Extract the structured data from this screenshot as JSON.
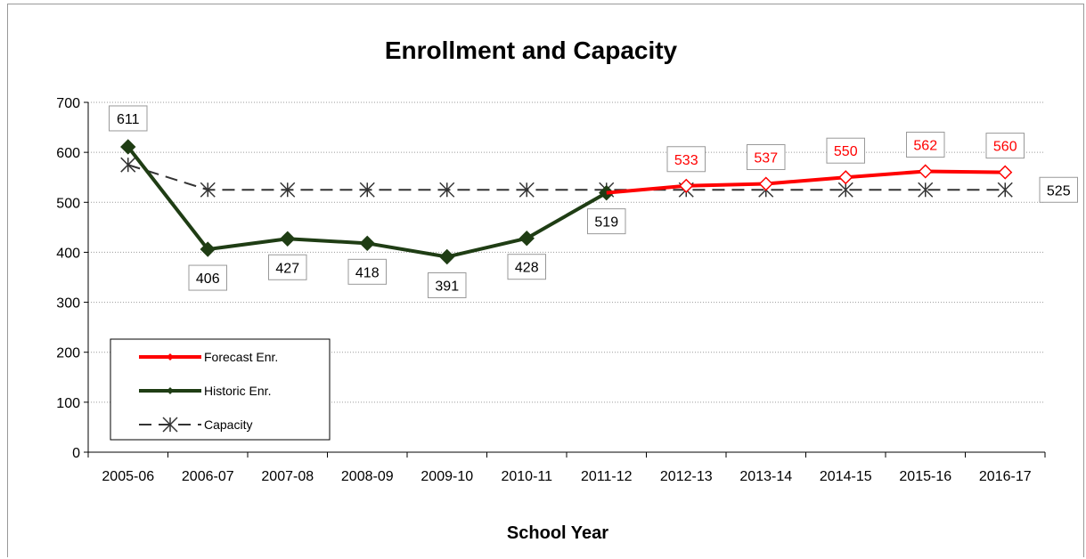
{
  "chart_data": {
    "type": "line",
    "title": "Enrollment and Capacity",
    "xlabel": "School Year",
    "ylabel": "",
    "ylim": [
      0,
      700
    ],
    "yticks": [
      "0",
      "100",
      "200",
      "300",
      "400",
      "500",
      "600",
      "700"
    ],
    "grid": true,
    "legend_position": "bottom-left",
    "categories": [
      "2005-06",
      "2006-07",
      "2007-08",
      "2008-09",
      "2009-10",
      "2010-11",
      "2011-12",
      "2012-13",
      "2013-14",
      "2014-15",
      "2015-16",
      "2016-17"
    ],
    "series": [
      {
        "name": "Forecast Enr.",
        "color": "#ff0000",
        "marker": "diamond-open",
        "values": [
          null,
          null,
          null,
          null,
          null,
          null,
          519,
          533,
          537,
          550,
          562,
          560
        ],
        "labels": [
          null,
          null,
          null,
          null,
          null,
          null,
          null,
          "533",
          "537",
          "550",
          "562",
          "560"
        ]
      },
      {
        "name": "Historic Enr.",
        "color": "#1f3d14",
        "marker": "diamond-filled",
        "values": [
          611,
          406,
          427,
          418,
          391,
          428,
          519,
          null,
          null,
          null,
          null,
          null
        ],
        "labels": [
          "611",
          "406",
          "427",
          "418",
          "391",
          "428",
          "519",
          null,
          null,
          null,
          null,
          null
        ]
      },
      {
        "name": "Capacity",
        "color": "#333333",
        "marker": "asterisk",
        "dashed": true,
        "values": [
          575,
          525,
          525,
          525,
          525,
          525,
          525,
          525,
          525,
          525,
          525,
          525
        ],
        "labels": [
          null,
          null,
          null,
          null,
          null,
          null,
          null,
          null,
          null,
          null,
          null,
          "525"
        ]
      }
    ]
  }
}
